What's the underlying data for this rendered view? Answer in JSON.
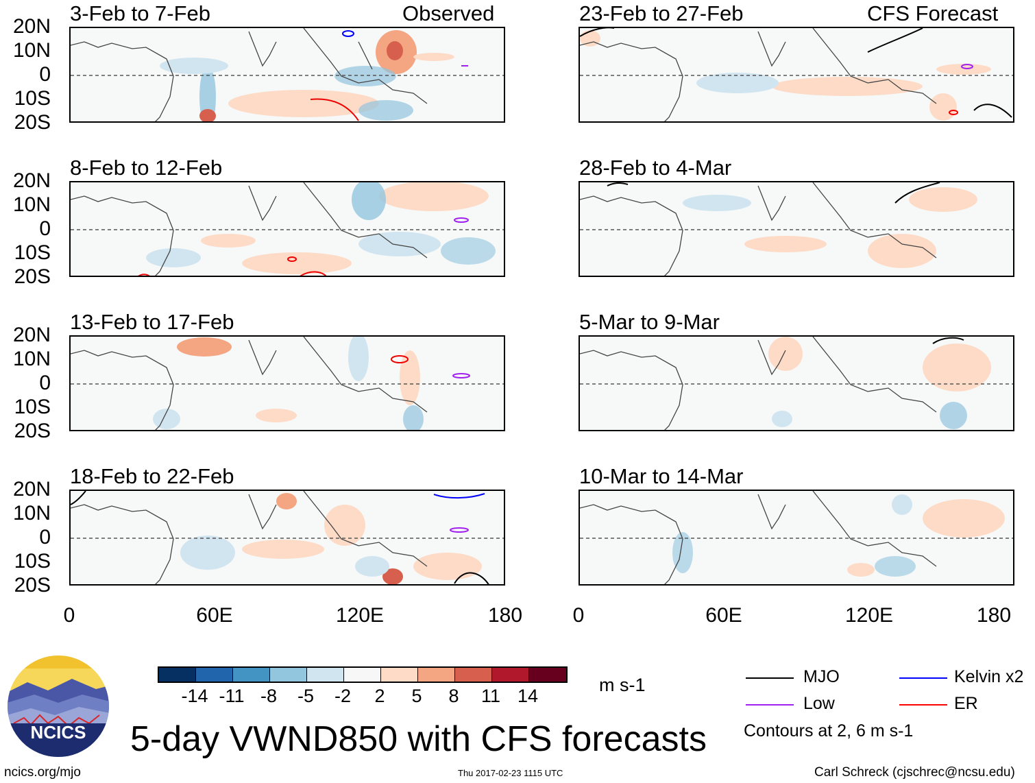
{
  "panels": [
    {
      "title": "3-Feb to 7-Feb",
      "tag": "Observed"
    },
    {
      "title": "8-Feb to 12-Feb",
      "tag": ""
    },
    {
      "title": "13-Feb to 17-Feb",
      "tag": ""
    },
    {
      "title": "18-Feb to 22-Feb",
      "tag": ""
    },
    {
      "title": "23-Feb to 27-Feb",
      "tag": "CFS Forecast"
    },
    {
      "title": "28-Feb to 4-Mar",
      "tag": ""
    },
    {
      "title": "5-Mar to 9-Mar",
      "tag": ""
    },
    {
      "title": "10-Mar to 14-Mar",
      "tag": ""
    }
  ],
  "lat_labels": [
    "20N",
    "10N",
    "0",
    "10S",
    "20S"
  ],
  "lon_labels": [
    "0",
    "60E",
    "120E",
    "180"
  ],
  "colorbar": {
    "colors": [
      "#053061",
      "#2166ac",
      "#4393c3",
      "#92c5de",
      "#d1e5f0",
      "#f7f7f7",
      "#fddbc7",
      "#f4a582",
      "#d6604d",
      "#b2182b",
      "#67001f"
    ],
    "ticks": [
      "-14",
      "-11",
      "-8",
      "-5",
      "-2",
      "2",
      "5",
      "8",
      "11",
      "14"
    ],
    "units": "m s-1"
  },
  "legend": {
    "items": [
      {
        "label": "MJO",
        "color": "#000000"
      },
      {
        "label": "Kelvin x2",
        "color": "#0000ff"
      },
      {
        "label": "Low",
        "color": "#a020f0"
      },
      {
        "label": "ER",
        "color": "#ff0000"
      }
    ],
    "note": "Contours at 2, 6 m s-1"
  },
  "logo_text": "NCICS",
  "main_title": "5-day VWND850 with CFS forecasts",
  "footer": {
    "left": "ncics.org/mjo",
    "center": "Thu 2017-02-23 1115 UTC",
    "right": "Carl Schreck (cjschrec@ncsu.edu)"
  }
}
